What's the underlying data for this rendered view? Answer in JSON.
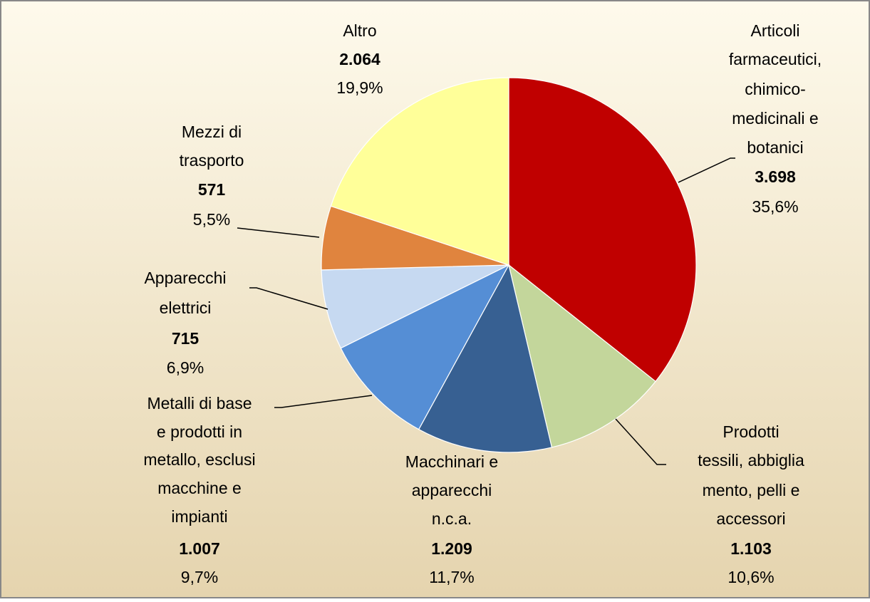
{
  "chart_data": {
    "type": "pie",
    "categories": [
      [
        "Articoli",
        "farmaceutici,",
        "chimico-",
        "medicinali e",
        "botanici"
      ],
      [
        "Prodotti",
        "tessili, abbiglia",
        "mento, pelli e",
        "accessori"
      ],
      [
        "Macchinari e",
        "apparecchi",
        "n.c.a."
      ],
      [
        "Metalli di base",
        "e prodotti in",
        "metallo, esclusi",
        "macchine e",
        "impianti"
      ],
      [
        "Apparecchi",
        "elettrici"
      ],
      [
        "Mezzi di",
        "trasporto"
      ],
      [
        "Altro"
      ]
    ],
    "values": [
      3698,
      1103,
      1209,
      1007,
      715,
      571,
      2064
    ],
    "value_labels": [
      "3.698",
      "1.103",
      "1.209",
      "1.007",
      "715",
      "571",
      "2.064"
    ],
    "percentages": [
      35.6,
      10.6,
      11.7,
      9.7,
      6.9,
      5.5,
      19.9
    ],
    "percentage_labels": [
      "35,6%",
      "10,6%",
      "11,7%",
      "9,7%",
      "6,9%",
      "5,5%",
      "19,9%"
    ],
    "colors": [
      "#c00000",
      "#c3d69b",
      "#376092",
      "#558ed5",
      "#c6d9f1",
      "#e0843e",
      "#ffff99"
    ]
  }
}
